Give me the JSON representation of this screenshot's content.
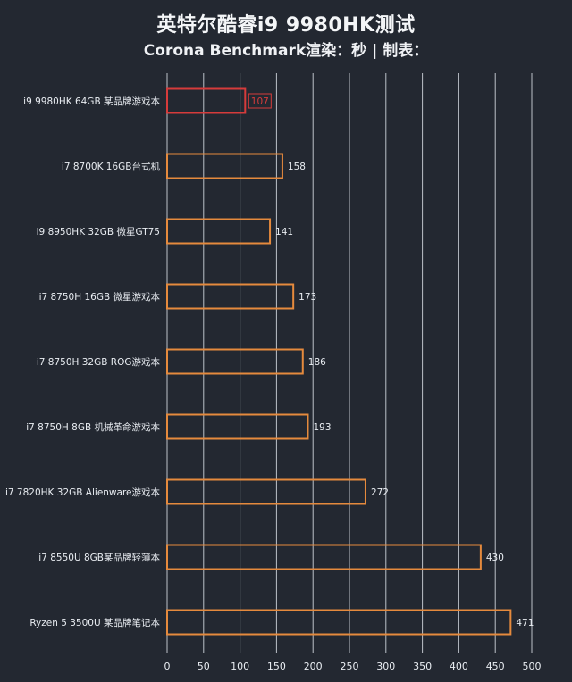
{
  "page": {
    "title": "英特尔酷睿i9 9980HK测试",
    "subtitle": "Corona Benchmark渲染：秒 | 制表："
  },
  "colors": {
    "background": "#232831",
    "grid": "#d8dde4",
    "bar_stroke": "#e58a3d",
    "highlight_stroke": "#d63b3b",
    "text": "#e9edf2"
  },
  "chart_data": {
    "type": "bar",
    "orientation": "horizontal",
    "title": "英特尔酷睿i9 9980HK测试",
    "subtitle": "Corona Benchmark渲染：秒 | 制表：",
    "xlabel": "",
    "ylabel": "",
    "xlim": [
      0,
      500
    ],
    "xticks": [
      0,
      50,
      100,
      150,
      200,
      250,
      300,
      350,
      400,
      450,
      500
    ],
    "grid": true,
    "highlight_index": 0,
    "categories": [
      "i9 9980HK 64GB 某品牌游戏本",
      "i7 8700K 16GB台式机",
      "i9 8950HK 32GB 微星GT75",
      "i7 8750H 16GB 微星游戏本",
      "i7 8750H 32GB ROG游戏本",
      "i7 8750H 8GB 机械革命游戏本",
      "i7 7820HK 32GB Alienware游戏本",
      "i7 8550U 8GB某品牌轻薄本",
      "Ryzen 5 3500U 某品牌笔记本"
    ],
    "values": [
      107,
      158,
      141,
      173,
      186,
      193,
      272,
      430,
      471
    ]
  }
}
